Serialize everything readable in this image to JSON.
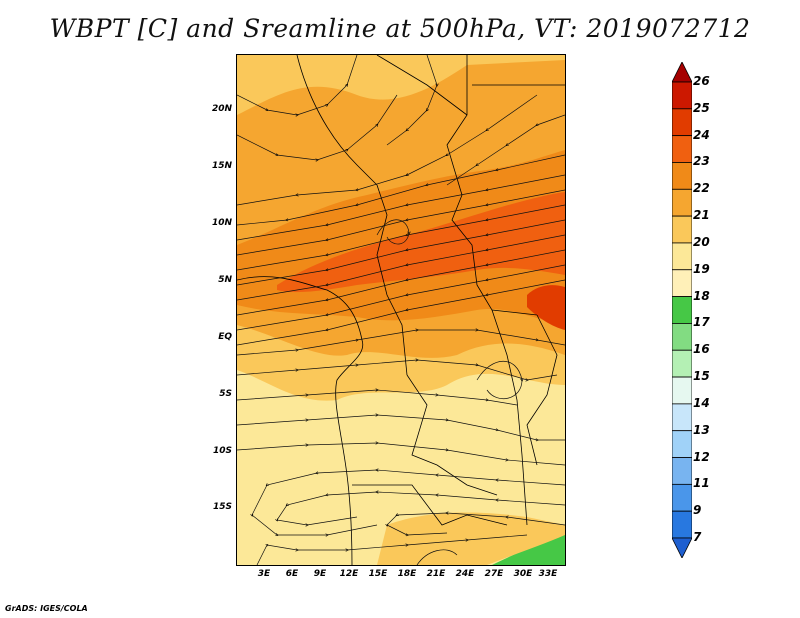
{
  "title": "WBPT [C] and Sreamline at 500hPa, VT: 2019072712",
  "credit": "GrADS: IGES/COLA",
  "map": {
    "region": "Central Africa",
    "latitude_labels": [
      "20N",
      "15N",
      "10N",
      "5N",
      "EQ",
      "5S",
      "10S",
      "15S"
    ],
    "longitude_labels": [
      "3E",
      "6E",
      "9E",
      "12E",
      "15E",
      "18E",
      "21E",
      "24E",
      "27E",
      "30E",
      "33E"
    ]
  },
  "colorbar": {
    "levels": [
      "26",
      "25",
      "24",
      "23",
      "22",
      "21",
      "20",
      "19",
      "18",
      "17",
      "16",
      "15",
      "14",
      "13",
      "12",
      "11",
      "9",
      "7"
    ],
    "colors": [
      "#a50000",
      "#cc1800",
      "#e13c00",
      "#f06010",
      "#f08a18",
      "#f5a630",
      "#fac85a",
      "#fce898",
      "#fff0b8",
      "#46c846",
      "#82dc82",
      "#b4f0b4",
      "#e6f8f0",
      "#c8e6fa",
      "#a0d2f8",
      "#78b4f0",
      "#4a96ea",
      "#2878e0",
      "#1e5fd0"
    ]
  },
  "field_colors": {
    "c19": "#fce898",
    "c20": "#fac85a",
    "c21": "#f5a630",
    "c22": "#f08a18",
    "c23": "#f06010",
    "c24": "#e13c00",
    "c17": "#46c846"
  }
}
